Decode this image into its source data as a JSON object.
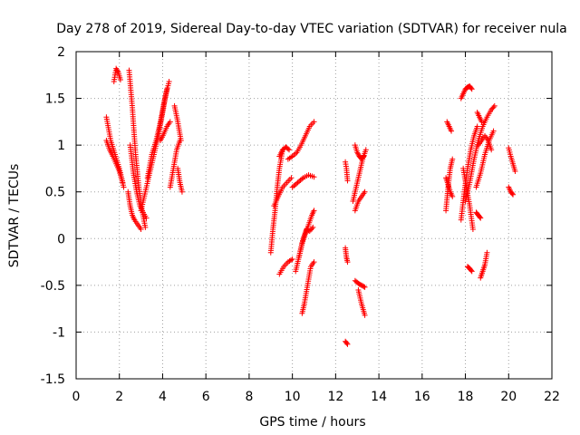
{
  "chart_data": {
    "type": "scatter",
    "title": "Day 278 of 2019, Sidereal Day-to-day VTEC variation (SDTVAR) for receiver nula",
    "xlabel": "GPS time / hours",
    "ylabel": "SDTVAR / TECUs",
    "xlim": [
      0,
      22
    ],
    "ylim": [
      -1.5,
      2
    ],
    "xticks": [
      0,
      2,
      4,
      6,
      8,
      10,
      12,
      14,
      16,
      18,
      20,
      22
    ],
    "yticks": [
      -1.5,
      -1,
      -0.5,
      0,
      0.5,
      1,
      1.5,
      2
    ],
    "ytick_labels": [
      "-1.5",
      "-1",
      "-0.5",
      "0",
      "0.5",
      "1",
      "1.5",
      "2"
    ],
    "grid": true,
    "marker": "+",
    "color": "#ff0000",
    "tracks": [
      {
        "x": [
          1.4,
          1.6,
          1.8,
          2.0,
          2.2
        ],
        "y": [
          1.3,
          1.05,
          0.9,
          0.75,
          0.55
        ]
      },
      {
        "x": [
          1.4,
          1.55,
          1.7,
          1.85,
          2.0,
          2.15
        ],
        "y": [
          1.05,
          0.95,
          0.88,
          0.8,
          0.72,
          0.6
        ]
      },
      {
        "x": [
          1.75,
          1.85,
          1.95,
          2.05
        ],
        "y": [
          1.68,
          1.82,
          1.78,
          1.7
        ]
      },
      {
        "x": [
          2.45,
          2.6,
          2.75,
          2.9,
          3.05,
          3.2
        ],
        "y": [
          1.8,
          1.4,
          0.9,
          0.55,
          0.3,
          0.12
        ]
      },
      {
        "x": [
          2.4,
          2.5,
          2.6,
          2.7,
          2.85,
          3.0
        ],
        "y": [
          0.5,
          0.35,
          0.25,
          0.2,
          0.15,
          0.1
        ]
      },
      {
        "x": [
          2.5,
          2.65,
          2.8,
          2.95,
          3.1,
          3.25
        ],
        "y": [
          1.0,
          0.7,
          0.5,
          0.35,
          0.28,
          0.22
        ]
      },
      {
        "x": [
          3.0,
          3.2,
          3.4,
          3.6,
          3.8,
          4.0,
          4.2
        ],
        "y": [
          0.3,
          0.5,
          0.7,
          0.9,
          1.1,
          1.35,
          1.6
        ]
      },
      {
        "x": [
          3.3,
          3.5,
          3.7,
          3.9,
          4.1,
          4.3
        ],
        "y": [
          0.65,
          0.9,
          1.05,
          1.25,
          1.5,
          1.68
        ]
      },
      {
        "x": [
          3.9,
          4.05,
          4.2,
          4.35
        ],
        "y": [
          1.05,
          1.12,
          1.2,
          1.25
        ]
      },
      {
        "x": [
          4.35,
          4.5,
          4.65,
          4.8
        ],
        "y": [
          0.55,
          0.75,
          0.95,
          1.05
        ]
      },
      {
        "x": [
          4.7,
          4.8,
          4.9
        ],
        "y": [
          0.75,
          0.6,
          0.5
        ]
      },
      {
        "x": [
          4.55,
          4.7,
          4.85
        ],
        "y": [
          1.42,
          1.25,
          1.05
        ]
      },
      {
        "x": [
          9.0,
          9.1,
          9.2,
          9.3,
          9.4,
          9.55
        ],
        "y": [
          -0.15,
          0.1,
          0.3,
          0.55,
          0.75,
          0.95
        ]
      },
      {
        "x": [
          9.15,
          9.35,
          9.55,
          9.75,
          9.95
        ],
        "y": [
          0.35,
          0.45,
          0.55,
          0.6,
          0.65
        ]
      },
      {
        "x": [
          9.4,
          9.55,
          9.7,
          9.85
        ],
        "y": [
          0.88,
          0.95,
          0.98,
          0.95
        ]
      },
      {
        "x": [
          9.4,
          9.6,
          9.8,
          10.0
        ],
        "y": [
          -0.38,
          -0.3,
          -0.25,
          -0.22
        ]
      },
      {
        "x": [
          9.8,
          10.0,
          10.2,
          10.4,
          10.6,
          10.8,
          11.0
        ],
        "y": [
          0.85,
          0.88,
          0.92,
          1.0,
          1.1,
          1.2,
          1.25
        ]
      },
      {
        "x": [
          10.0,
          10.25,
          10.5,
          10.75,
          11.0
        ],
        "y": [
          0.55,
          0.6,
          0.65,
          0.68,
          0.66
        ]
      },
      {
        "x": [
          10.15,
          10.3,
          10.45,
          10.6,
          10.75,
          10.9,
          11.0
        ],
        "y": [
          -0.35,
          -0.2,
          -0.05,
          0.05,
          0.15,
          0.25,
          0.3
        ]
      },
      {
        "x": [
          10.45,
          10.55,
          10.7,
          10.85,
          11.0
        ],
        "y": [
          -0.8,
          -0.7,
          -0.5,
          -0.3,
          -0.25
        ]
      },
      {
        "x": [
          10.3,
          10.5,
          10.65,
          10.8,
          10.95
        ],
        "y": [
          -0.2,
          0.0,
          0.1,
          0.08,
          0.12
        ]
      },
      {
        "x": [
          12.45,
          12.5,
          12.55
        ],
        "y": [
          -0.1,
          -0.2,
          -0.25
        ]
      },
      {
        "x": [
          12.45,
          12.5,
          12.55
        ],
        "y": [
          0.82,
          0.75,
          0.62
        ]
      },
      {
        "x": [
          12.45,
          12.55
        ],
        "y": [
          -1.1,
          -1.13
        ]
      },
      {
        "x": [
          12.8,
          12.95,
          13.1,
          13.25,
          13.4
        ],
        "y": [
          0.4,
          0.55,
          0.7,
          0.85,
          0.95
        ]
      },
      {
        "x": [
          12.9,
          13.05,
          13.2,
          13.35
        ],
        "y": [
          0.3,
          0.4,
          0.45,
          0.5
        ]
      },
      {
        "x": [
          12.9,
          13.0,
          13.1,
          13.2,
          13.3
        ],
        "y": [
          1.0,
          0.92,
          0.88,
          0.85,
          0.88
        ]
      },
      {
        "x": [
          12.9,
          13.05,
          13.2,
          13.35
        ],
        "y": [
          -0.45,
          -0.48,
          -0.5,
          -0.52
        ]
      },
      {
        "x": [
          13.05,
          13.2,
          13.35
        ],
        "y": [
          -0.55,
          -0.7,
          -0.82
        ]
      },
      {
        "x": [
          17.1,
          17.2,
          17.3,
          17.4
        ],
        "y": [
          0.3,
          0.55,
          0.75,
          0.85
        ]
      },
      {
        "x": [
          17.1,
          17.2,
          17.3,
          17.4
        ],
        "y": [
          0.65,
          0.58,
          0.5,
          0.45
        ]
      },
      {
        "x": [
          17.15,
          17.25,
          17.35
        ],
        "y": [
          1.25,
          1.2,
          1.15
        ]
      },
      {
        "x": [
          17.8,
          17.9,
          18.0,
          18.1,
          18.2,
          18.3
        ],
        "y": [
          1.5,
          1.55,
          1.6,
          1.62,
          1.63,
          1.6
        ]
      },
      {
        "x": [
          17.8,
          17.95,
          18.1,
          18.25,
          18.4,
          18.55
        ],
        "y": [
          0.2,
          0.5,
          0.75,
          0.95,
          1.1,
          1.2
        ]
      },
      {
        "x": [
          17.9,
          18.05,
          18.2,
          18.35
        ],
        "y": [
          0.75,
          0.55,
          0.35,
          0.1
        ]
      },
      {
        "x": [
          18.0,
          18.2,
          18.4,
          18.6,
          18.8,
          19.0,
          19.2,
          19.35
        ],
        "y": [
          0.4,
          0.6,
          0.85,
          1.05,
          1.2,
          1.3,
          1.38,
          1.42
        ]
      },
      {
        "x": [
          18.5,
          18.7,
          18.9,
          19.1,
          19.3
        ],
        "y": [
          0.55,
          0.7,
          0.9,
          1.05,
          1.15
        ]
      },
      {
        "x": [
          18.55,
          18.65,
          18.75
        ],
        "y": [
          1.35,
          1.3,
          1.25
        ]
      },
      {
        "x": [
          18.6,
          18.75,
          18.9,
          19.05,
          19.2
        ],
        "y": [
          1.0,
          1.05,
          1.1,
          1.05,
          0.95
        ]
      },
      {
        "x": [
          18.1,
          18.2,
          18.3
        ],
        "y": [
          -0.3,
          -0.32,
          -0.35
        ]
      },
      {
        "x": [
          18.7,
          18.8,
          18.9,
          19.0
        ],
        "y": [
          -0.42,
          -0.35,
          -0.28,
          -0.15
        ]
      },
      {
        "x": [
          18.5,
          18.6,
          18.7
        ],
        "y": [
          0.28,
          0.25,
          0.22
        ]
      },
      {
        "x": [
          20.0,
          20.1,
          20.2,
          20.3
        ],
        "y": [
          0.97,
          0.88,
          0.8,
          0.72
        ]
      },
      {
        "x": [
          20.0,
          20.1,
          20.2
        ],
        "y": [
          0.55,
          0.5,
          0.47
        ]
      }
    ]
  }
}
